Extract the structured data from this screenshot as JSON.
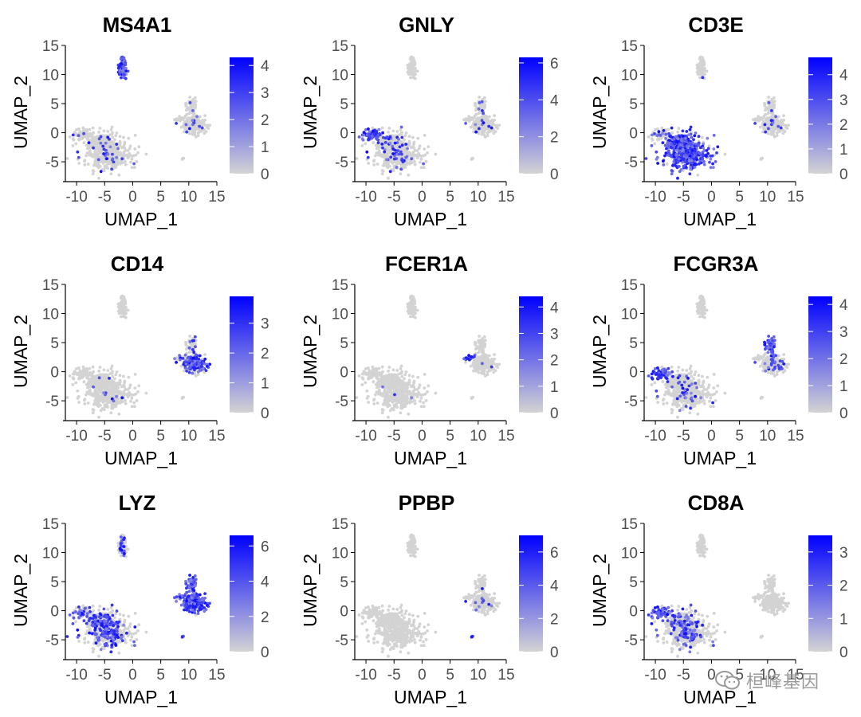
{
  "chart_data": [
    {
      "type": "scatter",
      "title": "MS4A1",
      "xlabel": "UMAP_1",
      "ylabel": "UMAP_2",
      "xlim": [
        -12,
        15
      ],
      "ylim": [
        -8,
        15
      ],
      "xticks": [
        -10,
        -5,
        0,
        5,
        10,
        15
      ],
      "yticks": [
        -5,
        0,
        5,
        10,
        15
      ],
      "xtick_labels": [
        "-10",
        "-5",
        "0",
        "5",
        "10",
        "15"
      ],
      "ytick_labels": [
        "-5",
        "0",
        "5",
        "10",
        "15"
      ],
      "legend_max": 4.3,
      "legend_ticks": [
        0,
        1,
        2,
        3,
        4
      ],
      "legend_tick_labels": [
        "0",
        "1",
        "2",
        "3",
        "4"
      ],
      "expression": {
        "tcell": 0.04,
        "nk": 0.02,
        "bcell": 0.95,
        "mono_main": 0.05,
        "mono_upper": 0.05,
        "dc": 0.0,
        "platelet": 0.0
      }
    },
    {
      "type": "scatter",
      "title": "GNLY",
      "xlabel": "UMAP_1",
      "ylabel": "UMAP_2",
      "xlim": [
        -12,
        15
      ],
      "ylim": [
        -8,
        15
      ],
      "xticks": [
        -10,
        -5,
        0,
        5,
        10,
        15
      ],
      "yticks": [
        -5,
        0,
        5,
        10,
        15
      ],
      "xtick_labels": [
        "-10",
        "-5",
        "0",
        "5",
        "10",
        "15"
      ],
      "ytick_labels": [
        "-5",
        "0",
        "5",
        "10",
        "15"
      ],
      "legend_max": 6.3,
      "legend_ticks": [
        0,
        2,
        4,
        6
      ],
      "legend_tick_labels": [
        "0",
        "2",
        "4",
        "6"
      ],
      "expression": {
        "tcell": 0.08,
        "nk": 0.95,
        "bcell": 0.0,
        "mono_main": 0.02,
        "mono_upper": 0.08,
        "dc": 0.0,
        "platelet": 0.0
      }
    },
    {
      "type": "scatter",
      "title": "CD3E",
      "xlabel": "UMAP_1",
      "ylabel": "UMAP_2",
      "xlim": [
        -12,
        15
      ],
      "ylim": [
        -8,
        15
      ],
      "xticks": [
        -10,
        -5,
        0,
        5,
        10,
        15
      ],
      "yticks": [
        -5,
        0,
        5,
        10,
        15
      ],
      "xtick_labels": [
        "-10",
        "-5",
        "0",
        "5",
        "10",
        "15"
      ],
      "ytick_labels": [
        "-5",
        "0",
        "5",
        "10",
        "15"
      ],
      "legend_max": 4.7,
      "legend_ticks": [
        0,
        1,
        2,
        3,
        4
      ],
      "legend_tick_labels": [
        "0",
        "1",
        "2",
        "3",
        "4"
      ],
      "expression": {
        "tcell": 0.85,
        "nk": 0.15,
        "bcell": 0.05,
        "mono_main": 0.05,
        "mono_upper": 0.05,
        "dc": 0.0,
        "platelet": 0.0
      }
    },
    {
      "type": "scatter",
      "title": "CD14",
      "xlabel": "UMAP_1",
      "ylabel": "UMAP_2",
      "xlim": [
        -12,
        15
      ],
      "ylim": [
        -8,
        15
      ],
      "xticks": [
        -10,
        -5,
        0,
        5,
        10,
        15
      ],
      "yticks": [
        -5,
        0,
        5,
        10,
        15
      ],
      "xtick_labels": [
        "-10",
        "-5",
        "0",
        "5",
        "10",
        "15"
      ],
      "ytick_labels": [
        "-5",
        "0",
        "5",
        "10",
        "15"
      ],
      "legend_max": 3.9,
      "legend_ticks": [
        0,
        1,
        2,
        3
      ],
      "legend_tick_labels": [
        "0",
        "1",
        "2",
        "3"
      ],
      "expression": {
        "tcell": 0.01,
        "nk": 0.0,
        "bcell": 0.0,
        "mono_main": 0.72,
        "mono_upper": 0.2,
        "dc": 0.1,
        "platelet": 0.0
      }
    },
    {
      "type": "scatter",
      "title": "FCER1A",
      "xlabel": "UMAP_1",
      "ylabel": "UMAP_2",
      "xlim": [
        -12,
        15
      ],
      "ylim": [
        -8,
        15
      ],
      "xticks": [
        -10,
        -5,
        0,
        5,
        10,
        15
      ],
      "yticks": [
        -5,
        0,
        5,
        10,
        15
      ],
      "xtick_labels": [
        "-10",
        "-5",
        "0",
        "5",
        "10",
        "15"
      ],
      "ytick_labels": [
        "-5",
        "0",
        "5",
        "10",
        "15"
      ],
      "legend_max": 4.4,
      "legend_ticks": [
        0,
        1,
        2,
        3,
        4
      ],
      "legend_tick_labels": [
        "0",
        "1",
        "2",
        "3",
        "4"
      ],
      "expression": {
        "tcell": 0.005,
        "nk": 0.0,
        "bcell": 0.0,
        "mono_main": 0.01,
        "mono_upper": 0.0,
        "dc": 0.95,
        "platelet": 0.0
      }
    },
    {
      "type": "scatter",
      "title": "FCGR3A",
      "xlabel": "UMAP_1",
      "ylabel": "UMAP_2",
      "xlim": [
        -12,
        15
      ],
      "ylim": [
        -8,
        15
      ],
      "xticks": [
        -10,
        -5,
        0,
        5,
        10,
        15
      ],
      "yticks": [
        -5,
        0,
        5,
        10,
        15
      ],
      "xtick_labels": [
        "-10",
        "-5",
        "0",
        "5",
        "10",
        "15"
      ],
      "ytick_labels": [
        "-5",
        "0",
        "5",
        "10",
        "15"
      ],
      "legend_max": 4.3,
      "legend_ticks": [
        0,
        1,
        2,
        3,
        4
      ],
      "legend_tick_labels": [
        "0",
        "1",
        "2",
        "3",
        "4"
      ],
      "expression": {
        "tcell": 0.05,
        "nk": 0.9,
        "bcell": 0.0,
        "mono_main": 0.15,
        "mono_upper": 0.92,
        "dc": 0.0,
        "platelet": 0.0
      }
    },
    {
      "type": "scatter",
      "title": "LYZ",
      "xlabel": "UMAP_1",
      "ylabel": "UMAP_2",
      "xlim": [
        -12,
        15
      ],
      "ylim": [
        -8,
        15
      ],
      "xticks": [
        -10,
        -5,
        0,
        5,
        10,
        15
      ],
      "yticks": [
        -5,
        0,
        5,
        10,
        15
      ],
      "xtick_labels": [
        "-10",
        "-5",
        "0",
        "5",
        "10",
        "15"
      ],
      "ytick_labels": [
        "-5",
        "0",
        "5",
        "10",
        "15"
      ],
      "legend_max": 6.6,
      "legend_ticks": [
        0,
        2,
        4,
        6
      ],
      "legend_tick_labels": [
        "0",
        "2",
        "4",
        "6"
      ],
      "expression": {
        "tcell": 0.3,
        "nk": 0.35,
        "bcell": 0.35,
        "mono_main": 0.98,
        "mono_upper": 0.85,
        "dc": 0.7,
        "platelet": 0.7
      }
    },
    {
      "type": "scatter",
      "title": "PPBP",
      "xlabel": "UMAP_1",
      "ylabel": "UMAP_2",
      "xlim": [
        -12,
        15
      ],
      "ylim": [
        -8,
        15
      ],
      "xticks": [
        -10,
        -5,
        0,
        5,
        10,
        15
      ],
      "yticks": [
        -5,
        0,
        5,
        10,
        15
      ],
      "xtick_labels": [
        "-10",
        "-5",
        "0",
        "5",
        "10",
        "15"
      ],
      "ytick_labels": [
        "-5",
        "0",
        "5",
        "10",
        "15"
      ],
      "legend_max": 7.0,
      "legend_ticks": [
        0,
        2,
        4,
        6
      ],
      "legend_tick_labels": [
        "0",
        "2",
        "4",
        "6"
      ],
      "expression": {
        "tcell": 0.0,
        "nk": 0.0,
        "bcell": 0.0,
        "mono_main": 0.03,
        "mono_upper": 0.03,
        "dc": 0.0,
        "platelet": 1.0
      }
    },
    {
      "type": "scatter",
      "title": "CD8A",
      "xlabel": "UMAP_1",
      "ylabel": "UMAP_2",
      "xlim": [
        -12,
        15
      ],
      "ylim": [
        -8,
        15
      ],
      "xticks": [
        -10,
        -5,
        0,
        5,
        10,
        15
      ],
      "yticks": [
        -5,
        0,
        5,
        10,
        15
      ],
      "xtick_labels": [
        "-10",
        "-5",
        "0",
        "5",
        "10",
        "15"
      ],
      "ytick_labels": [
        "-5",
        "0",
        "5",
        "10",
        "15"
      ],
      "legend_max": 3.5,
      "legend_ticks": [
        0,
        1,
        2,
        3
      ],
      "legend_tick_labels": [
        "0",
        "1",
        "2",
        "3"
      ],
      "expression": {
        "tcell": 0.18,
        "nk": 0.7,
        "bcell": 0.0,
        "mono_main": 0.0,
        "mono_upper": 0.0,
        "dc": 0.0,
        "platelet": 0.0
      }
    }
  ],
  "clusters": {
    "bcell": {
      "cx": -1.8,
      "cy": 11.3,
      "rx": 0.7,
      "ry": 2.0,
      "n": 70
    },
    "tcell": {
      "cx": -4.5,
      "cy": -3.5,
      "rx": 3.6,
      "ry": 2.8,
      "n": 520
    },
    "nk": {
      "cx": -9.0,
      "cy": -0.3,
      "rx": 1.8,
      "ry": 0.9,
      "n": 70
    },
    "mono_main": {
      "cx": 11.2,
      "cy": 1.4,
      "rx": 2.2,
      "ry": 1.6,
      "n": 200
    },
    "mono_upper": {
      "cx": 10.5,
      "cy": 4.3,
      "rx": 0.9,
      "ry": 1.7,
      "n": 60
    },
    "dc": {
      "cx": 8.5,
      "cy": 2.4,
      "rx": 1.0,
      "ry": 0.4,
      "n": 18
    },
    "platelet": {
      "cx": 9.0,
      "cy": -4.5,
      "rx": 0.2,
      "ry": 0.2,
      "n": 4
    }
  },
  "colors": {
    "low": "#d3d3d3",
    "high": "#0000ff",
    "axis": "#000000",
    "text": "#000000",
    "tick_text": "#4d4d4d"
  },
  "watermark": {
    "text": "桓峰基因",
    "icon": "wechat-icon"
  }
}
